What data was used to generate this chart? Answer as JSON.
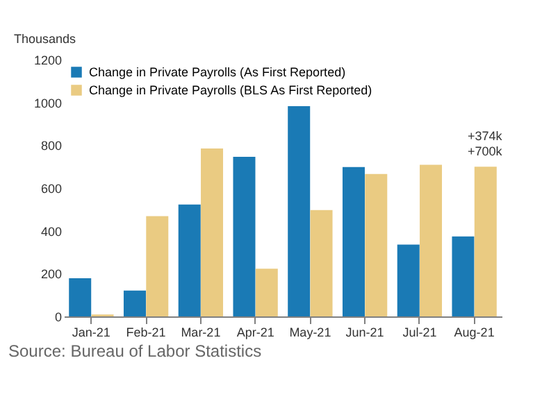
{
  "chart_data": {
    "type": "bar",
    "ylabel": "Thousands",
    "categories": [
      "Jan-21",
      "Feb-21",
      "Mar-21",
      "Apr-21",
      "May-21",
      "Jun-21",
      "Jul-21",
      "Aug-21"
    ],
    "series": [
      {
        "name": "Change in Private Payrolls (As First Reported)",
        "color": "#1a7ab5",
        "values": [
          178,
          121,
          523,
          746,
          983,
          698,
          336,
          374
        ]
      },
      {
        "name": "Change in Private Payrolls (BLS As First Reported)",
        "color": "#eacb82",
        "values": [
          9,
          469,
          785,
          223,
          497,
          666,
          709,
          700
        ]
      }
    ],
    "ylim": [
      0,
      1200
    ],
    "yticks": [
      0,
      200,
      400,
      600,
      800,
      1000,
      1200
    ],
    "grid": false,
    "legend": "top left",
    "annotations": [
      "+374k",
      "+700k",
      "Source: Bureau of Labor Statistics"
    ]
  }
}
